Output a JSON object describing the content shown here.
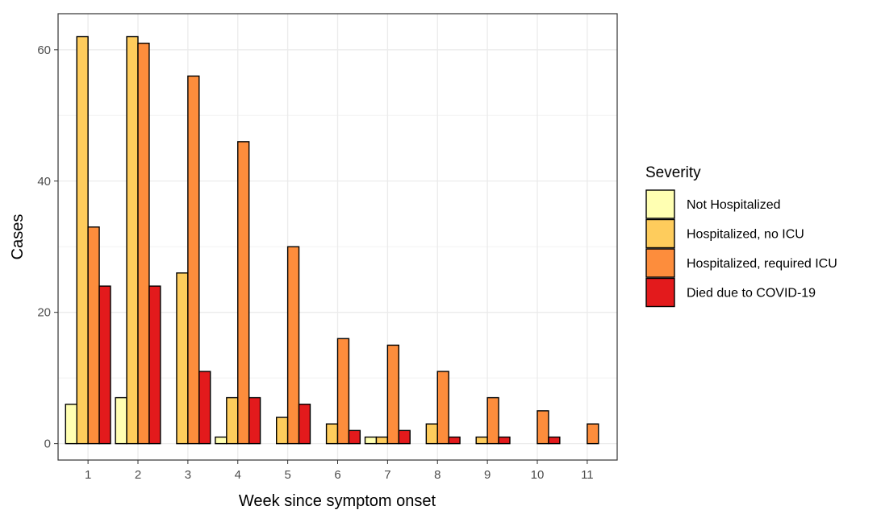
{
  "chart_data": {
    "type": "bar",
    "title": "",
    "xlabel": "Week since symptom onset",
    "ylabel": "Cases",
    "categories": [
      "1",
      "2",
      "3",
      "4",
      "5",
      "6",
      "7",
      "8",
      "9",
      "10",
      "11"
    ],
    "ylim": [
      -2.5,
      65.5
    ],
    "yticks": [
      0,
      20,
      40,
      60
    ],
    "grid": true,
    "legend": {
      "title": "Severity",
      "placement": "right"
    },
    "series": [
      {
        "name": "Not Hospitalized",
        "color": "#ffffb2",
        "values": [
          6,
          7,
          0,
          1,
          0,
          0,
          1,
          0,
          0,
          0,
          0
        ]
      },
      {
        "name": "Hospitalized, no ICU",
        "color": "#fecc5c",
        "values": [
          62,
          62,
          26,
          7,
          4,
          3,
          1,
          3,
          1,
          0,
          0
        ]
      },
      {
        "name": "Hospitalized, required ICU",
        "color": "#fd8d3c",
        "values": [
          33,
          61,
          56,
          46,
          30,
          16,
          15,
          11,
          7,
          5,
          3
        ]
      },
      {
        "name": "Died due to COVID-19",
        "color": "#e31a1c",
        "values": [
          24,
          24,
          11,
          7,
          6,
          2,
          2,
          1,
          1,
          1,
          0
        ]
      }
    ]
  }
}
